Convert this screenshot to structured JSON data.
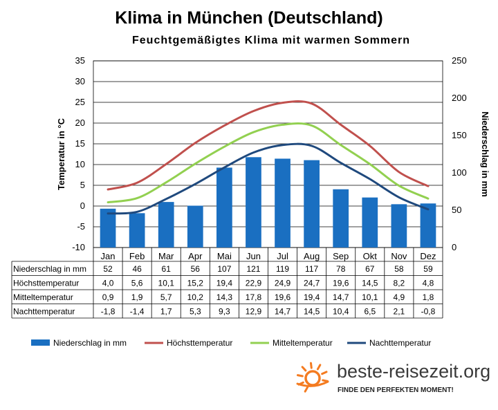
{
  "chart_data": {
    "type": "bar",
    "title": "Klima in München (Deutschland)",
    "subtitle": "Feuchtgemäßigtes Klima mit warmen Sommern",
    "categories": [
      "Jan",
      "Feb",
      "Mar",
      "Apr",
      "Mai",
      "Jun",
      "Jul",
      "Aug",
      "Sep",
      "Okt",
      "Nov",
      "Dez"
    ],
    "ylabel_left": "Temperatur in °C",
    "ylabel_right": "Niederschlag in mm",
    "ylim_left": [
      -10,
      35
    ],
    "ylim_right": [
      0,
      250
    ],
    "yticks_left": [
      "35",
      "30",
      "25",
      "20",
      "15",
      "10",
      "5",
      "0",
      "-5",
      "-10"
    ],
    "yticks_right": [
      "250",
      "200",
      "150",
      "100",
      "50",
      "0"
    ],
    "grid": true,
    "legend_position": "bottom",
    "series": [
      {
        "name": "Niederschlag in mm",
        "type": "bar",
        "axis": "right",
        "color": "#1a6fc1",
        "values": [
          52,
          46,
          61,
          56,
          107,
          121,
          119,
          117,
          78,
          67,
          58,
          59
        ]
      },
      {
        "name": "Höchsttemperatur",
        "type": "line",
        "axis": "left",
        "color": "#c0504d",
        "values": [
          4.0,
          5.6,
          10.1,
          15.2,
          19.4,
          22.9,
          24.9,
          24.7,
          19.6,
          14.5,
          8.2,
          4.8
        ]
      },
      {
        "name": "Mitteltemperatur",
        "type": "line",
        "axis": "left",
        "color": "#92d050",
        "values": [
          0.9,
          1.9,
          5.7,
          10.2,
          14.3,
          17.8,
          19.6,
          19.4,
          14.7,
          10.1,
          4.9,
          1.8
        ]
      },
      {
        "name": "Nachttemperatur",
        "type": "line",
        "axis": "left",
        "color": "#1f497d",
        "values": [
          -1.8,
          -1.4,
          1.7,
          5.3,
          9.3,
          12.9,
          14.7,
          14.5,
          10.4,
          6.5,
          2.1,
          -0.8
        ]
      }
    ],
    "table": {
      "rows": [
        {
          "label": "Niederschlag in mm",
          "cells": [
            "52",
            "46",
            "61",
            "56",
            "107",
            "121",
            "119",
            "117",
            "78",
            "67",
            "58",
            "59"
          ]
        },
        {
          "label": "Höchsttemperatur",
          "cells": [
            "4,0",
            "5,6",
            "10,1",
            "15,2",
            "19,4",
            "22,9",
            "24,9",
            "24,7",
            "19,6",
            "14,5",
            "8,2",
            "4,8"
          ]
        },
        {
          "label": "Mitteltemperatur",
          "cells": [
            "0,9",
            "1,9",
            "5,7",
            "10,2",
            "14,3",
            "17,8",
            "19,6",
            "19,4",
            "14,7",
            "10,1",
            "4,9",
            "1,8"
          ]
        },
        {
          "label": "Nachttemperatur",
          "cells": [
            "-1,8",
            "-1,4",
            "1,7",
            "5,3",
            "9,3",
            "12,9",
            "14,7",
            "14,5",
            "10,4",
            "6,5",
            "2,1",
            "-0,8"
          ]
        }
      ]
    }
  },
  "branding": {
    "name": "beste-reisezeit.org",
    "slogan": "FINDE DEN PERFEKTEN MOMENT!",
    "sun_color": "#f47b20",
    "icon": "sun-icon"
  }
}
